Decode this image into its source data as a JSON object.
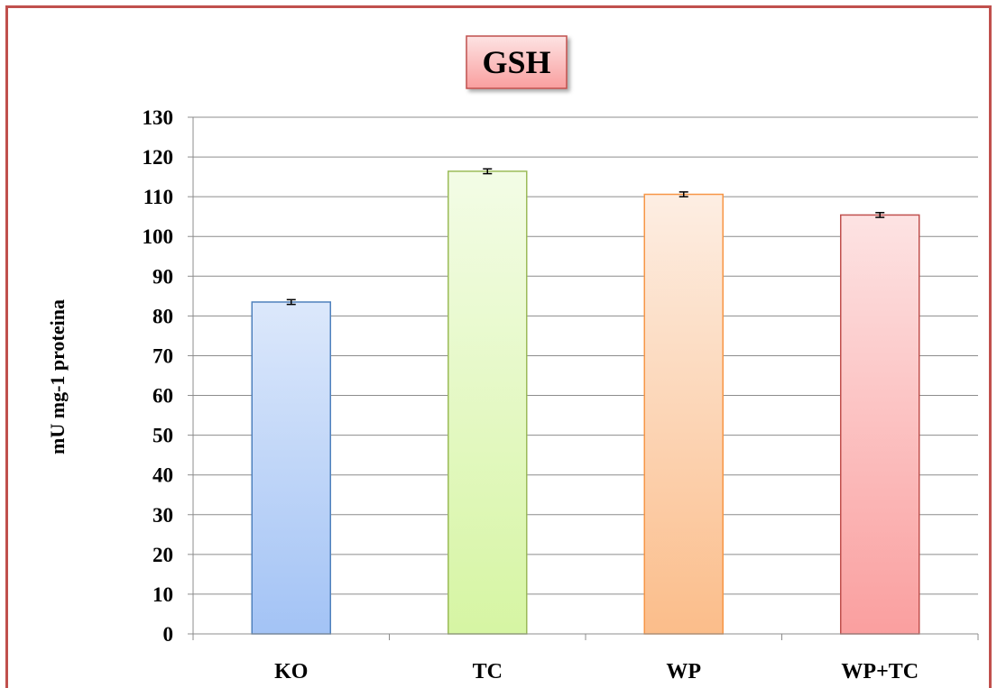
{
  "chart_data": {
    "type": "bar",
    "title": "GSH",
    "xlabel": "",
    "ylabel": "mU mg-1 proteina",
    "categories": [
      "KO",
      "TC",
      "WP",
      "WP+TC"
    ],
    "values": [
      83.5,
      116.4,
      110.6,
      105.4
    ],
    "errors": [
      0.6,
      0.6,
      0.6,
      0.6
    ],
    "ylim": [
      0,
      130
    ],
    "yticks": [
      0,
      10,
      20,
      30,
      40,
      50,
      60,
      70,
      80,
      90,
      100,
      110,
      120,
      130
    ],
    "grid": true,
    "legend": "none",
    "colors": {
      "bars": [
        {
          "top": "#dce8fb",
          "bottom": "#a3c3f5",
          "stroke": "#4f81bd"
        },
        {
          "top": "#f3fce6",
          "bottom": "#d6f5a3",
          "stroke": "#9bbb59"
        },
        {
          "top": "#fdeee3",
          "bottom": "#fbbd8a",
          "stroke": "#f79646"
        },
        {
          "top": "#fde3e3",
          "bottom": "#fa9f9f",
          "stroke": "#c0504d"
        }
      ],
      "frame": "#c0504d",
      "title_box_top": "#fde3e3",
      "title_box_bottom": "#f99e9e",
      "grid": "#8c8c8c"
    }
  }
}
